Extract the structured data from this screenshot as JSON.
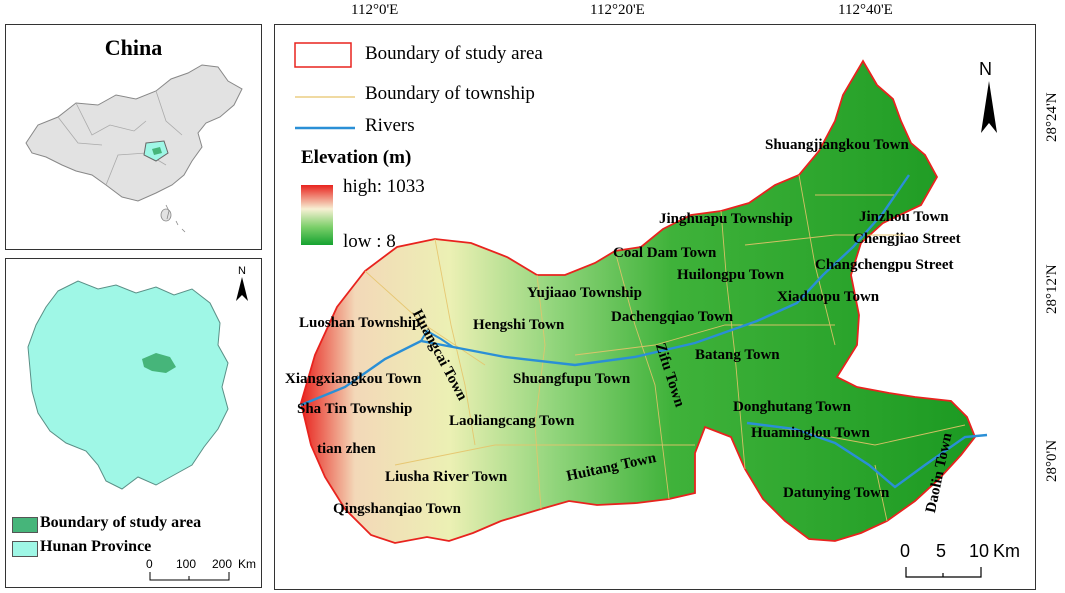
{
  "coords": {
    "top": [
      "112°0'E",
      "112°20'E",
      "112°40'E"
    ],
    "right": [
      "28°24'N",
      "28°12'N",
      "28°0'N"
    ]
  },
  "inset_china": {
    "title": "China"
  },
  "inset_hunan": {
    "north": "N",
    "legend": [
      {
        "label": "Boundary of study area",
        "color": "#46b57a"
      },
      {
        "label": "Hunan Province",
        "color": "#9ff7e6"
      }
    ],
    "scale": {
      "ticks": [
        "0",
        "100",
        "200"
      ],
      "unit": "Km"
    }
  },
  "main_map": {
    "legend": {
      "items": [
        {
          "label": "Boundary of study area",
          "color": "#e8231e"
        },
        {
          "label": "Boundary of township",
          "color": "#e6c36a"
        },
        {
          "label": "Rivers",
          "color": "#2a8fd6"
        }
      ],
      "elevation_title": "Elevation (m)",
      "high": "high: 1033",
      "low": "low : 8"
    },
    "north": "N",
    "scale": {
      "ticks": [
        "0",
        "5",
        "10"
      ],
      "unit": "Km"
    },
    "towns": [
      "Shuangjiangkou Town",
      "Jinghuapu Township",
      "Jinzhou Town",
      "Chengjiao Street",
      "Coal Dam Town",
      "Changchengpu Street",
      "Huilongpu Town",
      "Xiaduopu Town",
      "Yujiaao Township",
      "Hengshi Town",
      "Dachengqiao Town",
      "Luoshan Township",
      "Huangcai Town",
      "Batang Town",
      "Xiangxiangkou Town",
      "Shuangfupu Town",
      "Zifu Town",
      "Sha Tin Township",
      "Laoliangcang Town",
      "Donghutang Town",
      "Huaminglou Town",
      "tian zhen",
      "Huitang Town",
      "Liusha River Town",
      "Daolin Town",
      "Datunying Town",
      "Qingshanqiao Town"
    ]
  }
}
